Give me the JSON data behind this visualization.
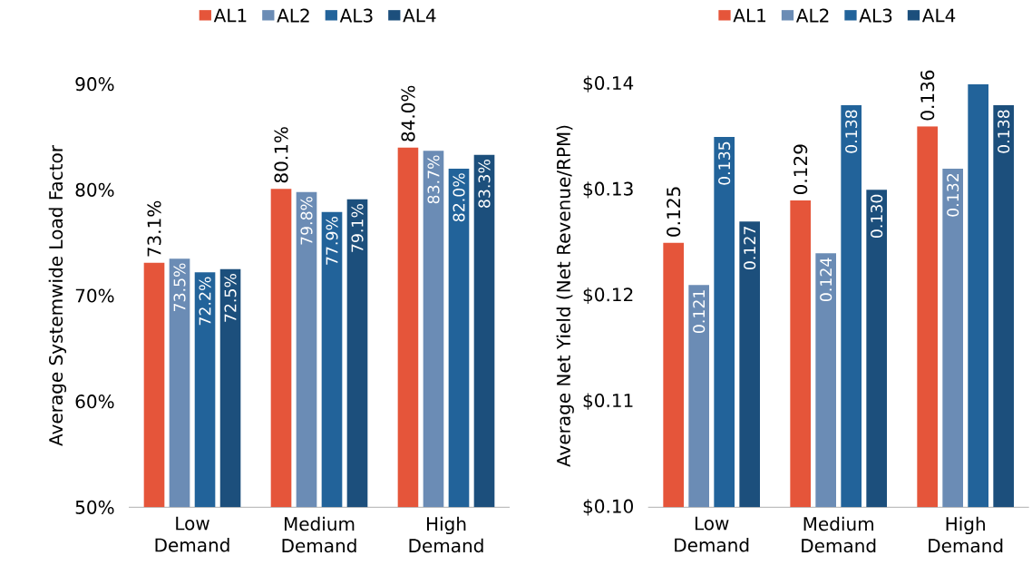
{
  "chart_data": [
    {
      "type": "bar",
      "ylabel": "Average Systemwide Load Factor",
      "categories": [
        "Low Demand",
        "Medium Demand",
        "High Demand"
      ],
      "series": [
        {
          "name": "AL1",
          "color": "#e5553a",
          "values": [
            73.1,
            80.1,
            84.0
          ],
          "value_labels": [
            "73.1%",
            "80.1%",
            "84.0%"
          ]
        },
        {
          "name": "AL2",
          "color": "#6b8cb5",
          "values": [
            73.5,
            79.8,
            83.7
          ],
          "value_labels": [
            "73.5%",
            "79.8%",
            "83.7%"
          ]
        },
        {
          "name": "AL3",
          "color": "#22639a",
          "values": [
            72.2,
            77.9,
            82.0
          ],
          "value_labels": [
            "72.2%",
            "77.9%",
            "82.0%"
          ]
        },
        {
          "name": "AL4",
          "color": "#1c4f7c",
          "values": [
            72.5,
            79.1,
            83.3
          ],
          "value_labels": [
            "72.5%",
            "79.1%",
            "83.3%"
          ]
        }
      ],
      "ylim": [
        50,
        90
      ],
      "yticks": [
        {
          "value": 50,
          "label": "50%"
        },
        {
          "value": 60,
          "label": "60%"
        },
        {
          "value": 70,
          "label": "70%"
        },
        {
          "value": 80,
          "label": "80%"
        },
        {
          "value": 90,
          "label": "90%"
        }
      ],
      "legend": "top",
      "grid": false
    },
    {
      "type": "bar",
      "ylabel": "Average Net Yield (Net Revenue/RPM)",
      "categories": [
        "Low Demand",
        "Medium Demand",
        "High Demand"
      ],
      "series": [
        {
          "name": "AL1",
          "color": "#e5553a",
          "values": [
            0.125,
            0.129,
            0.136
          ],
          "value_labels": [
            "0.125",
            "0.129",
            "0.136"
          ]
        },
        {
          "name": "AL2",
          "color": "#6b8cb5",
          "values": [
            0.121,
            0.124,
            0.132
          ],
          "value_labels": [
            "0.121",
            "0.124",
            "0.132"
          ]
        },
        {
          "name": "AL3",
          "color": "#22639a",
          "values": [
            0.135,
            0.138,
            0.14
          ],
          "value_labels": [
            "0.135",
            "0.138",
            null
          ]
        },
        {
          "name": "AL4",
          "color": "#1c4f7c",
          "values": [
            0.127,
            0.13,
            0.138
          ],
          "value_labels": [
            "0.127",
            "0.130",
            "0.138"
          ]
        }
      ],
      "ylim": [
        0.1,
        0.14
      ],
      "yticks": [
        {
          "value": 0.1,
          "label": "$0.10"
        },
        {
          "value": 0.11,
          "label": "$0.11"
        },
        {
          "value": 0.12,
          "label": "$0.12"
        },
        {
          "value": 0.13,
          "label": "$0.13"
        },
        {
          "value": 0.14,
          "label": "$0.14"
        }
      ],
      "legend": "top",
      "grid": false
    }
  ]
}
